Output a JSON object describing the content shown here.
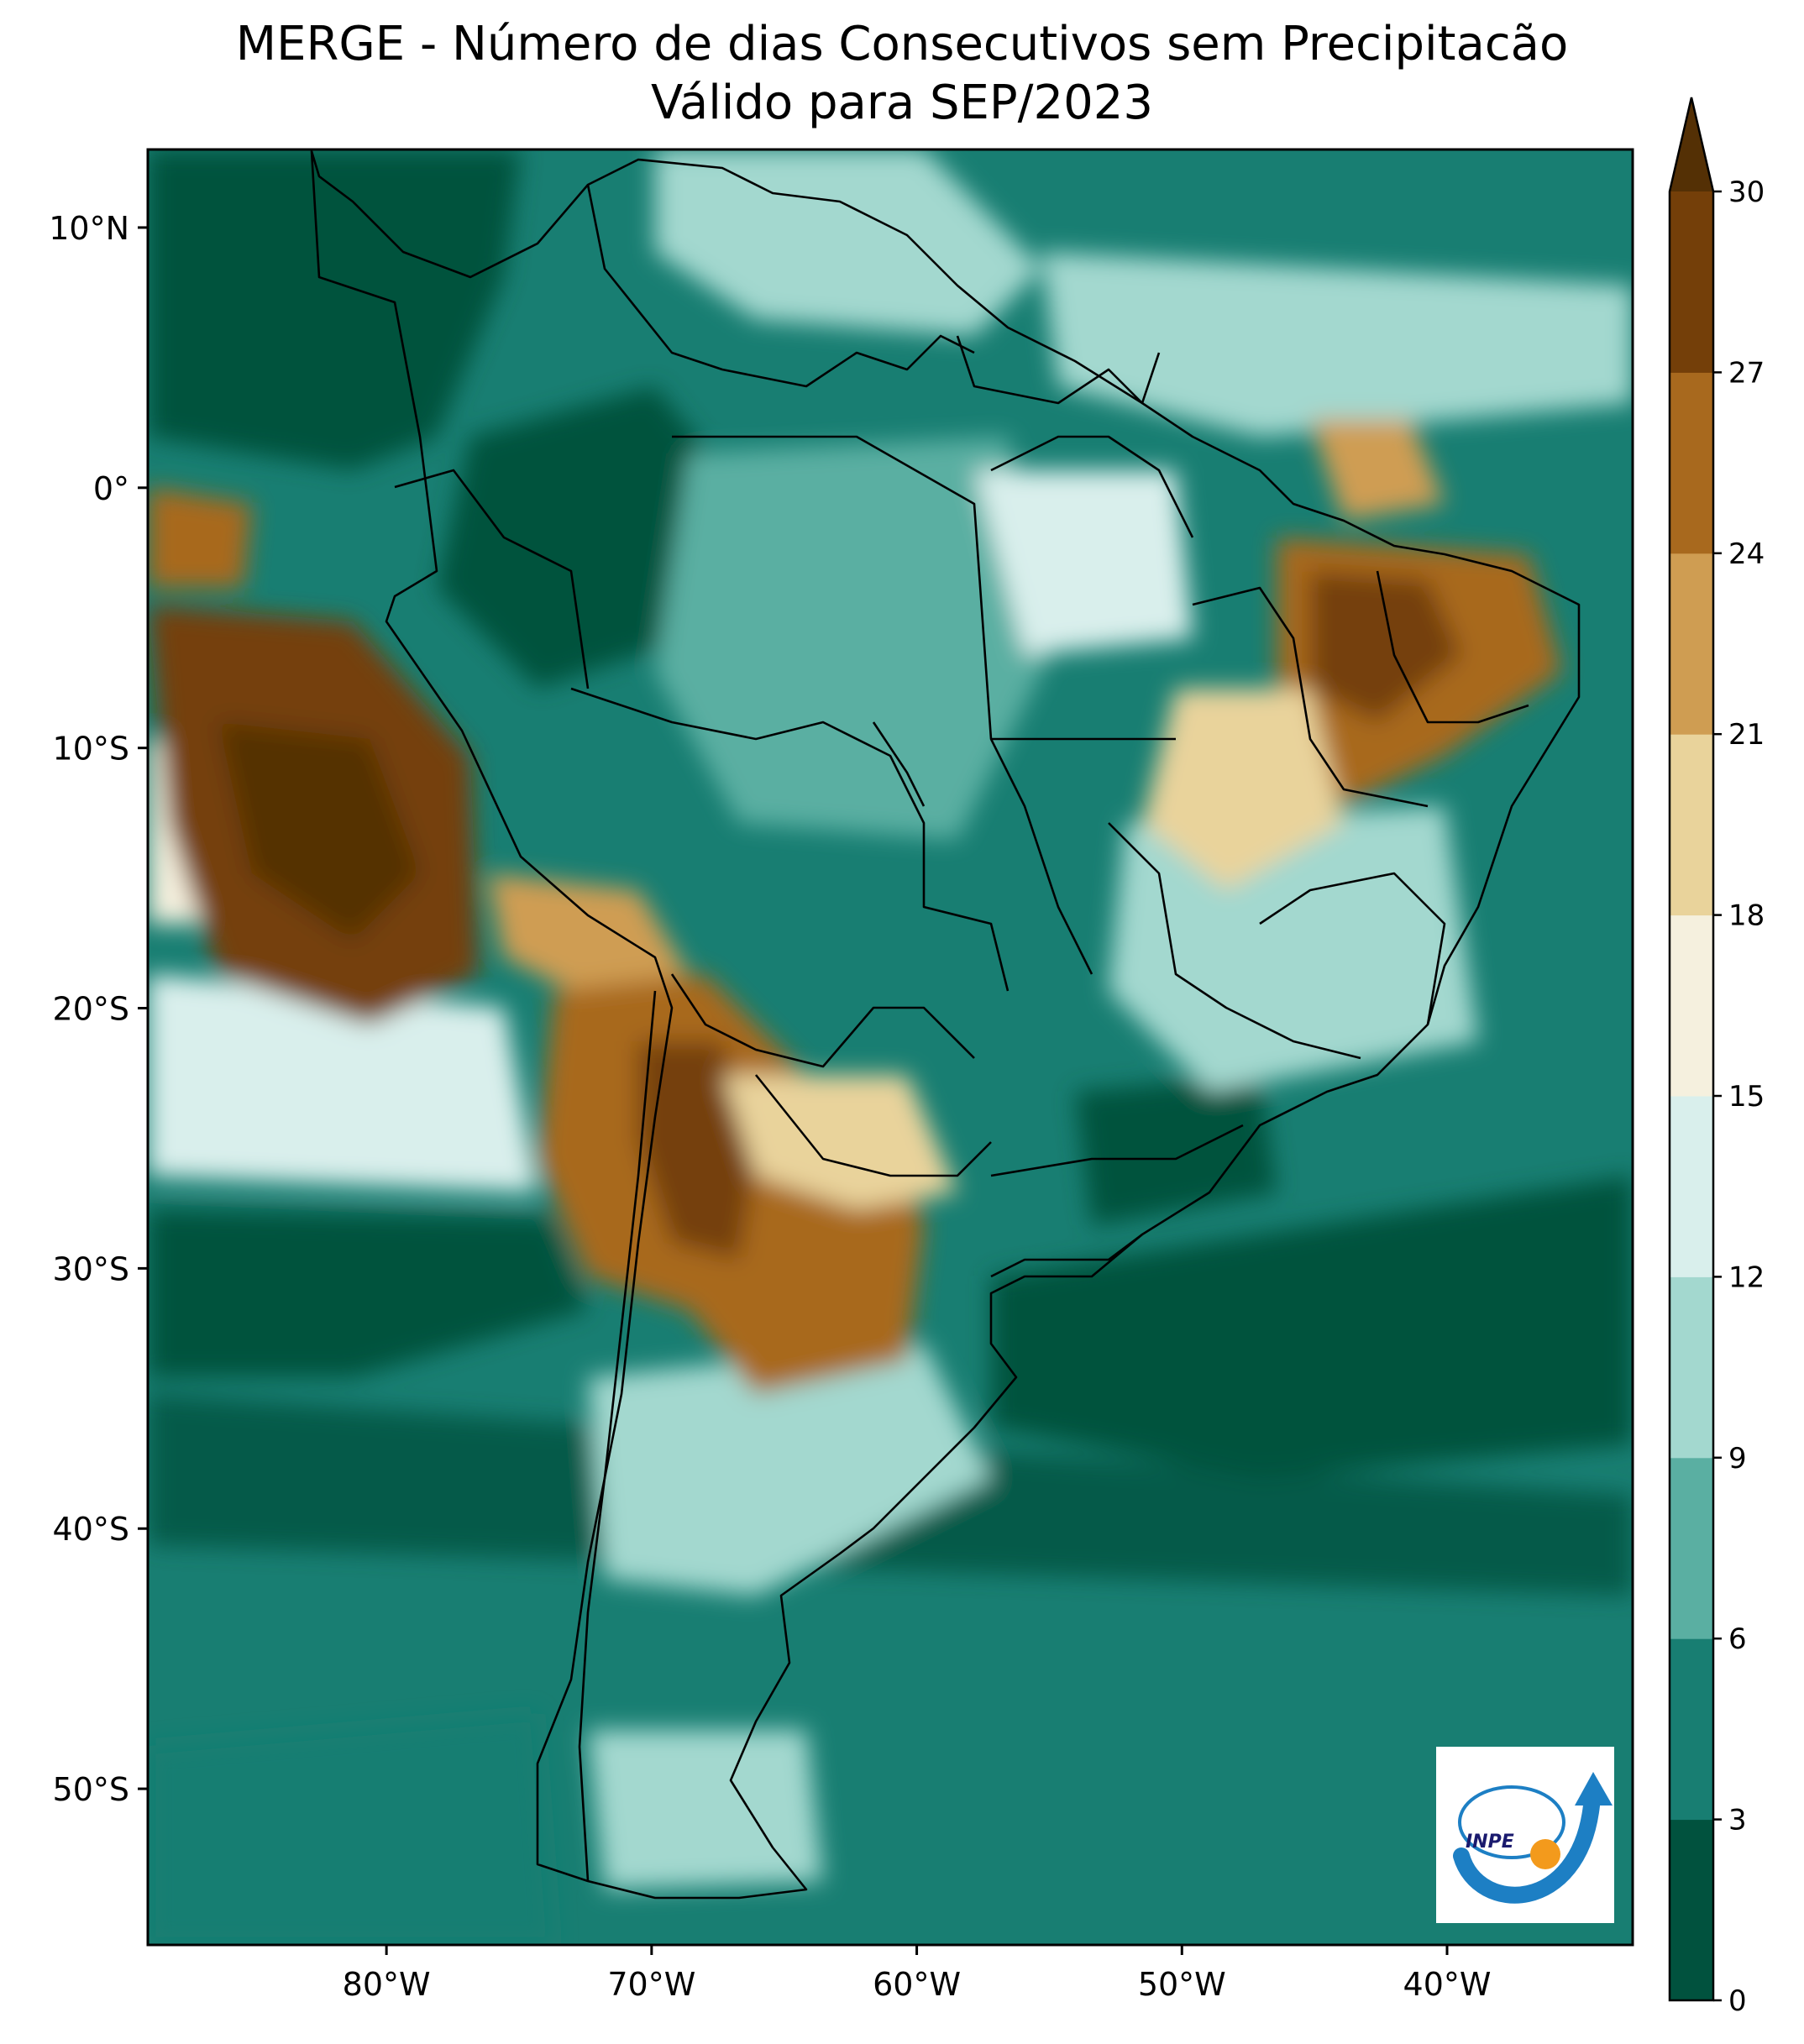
{
  "title": {
    "line1": "MERGE - Número de dias Consecutivos sem Precipitacão",
    "line2": "Válido para SEP/2023"
  },
  "map": {
    "lon_range": [
      -89,
      -33
    ],
    "lat_range": [
      -56,
      13
    ],
    "lat_ticks": [
      {
        "value": 10,
        "label": "10°N"
      },
      {
        "value": 0,
        "label": "0°"
      },
      {
        "value": -10,
        "label": "10°S"
      },
      {
        "value": -20,
        "label": "20°S"
      },
      {
        "value": -30,
        "label": "30°S"
      },
      {
        "value": -40,
        "label": "40°S"
      },
      {
        "value": -50,
        "label": "50°S"
      }
    ],
    "lon_ticks": [
      {
        "value": -80,
        "label": "80°W"
      },
      {
        "value": -70,
        "label": "70°W"
      },
      {
        "value": -60,
        "label": "60°W"
      },
      {
        "value": -50,
        "label": "50°W"
      },
      {
        "value": -40,
        "label": "40°W"
      }
    ]
  },
  "colorbar": {
    "levels": [
      0,
      3,
      6,
      9,
      12,
      15,
      18,
      21,
      24,
      27,
      30
    ],
    "labels": [
      "0",
      "3",
      "6",
      "9",
      "12",
      "15",
      "18",
      "21",
      "24",
      "27",
      "30"
    ],
    "colors": [
      "#01523e",
      "#187e72",
      "#5aafa2",
      "#a3d8cf",
      "#d9efec",
      "#f5f0de",
      "#e9d39b",
      "#cf9d52",
      "#a8691e",
      "#743f09"
    ],
    "extend_color": "#543005"
  },
  "logo": {
    "text": "INPE"
  }
}
